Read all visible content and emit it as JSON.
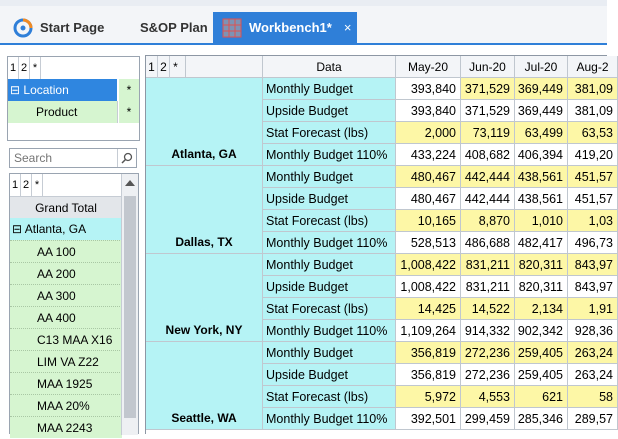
{
  "tabs": [
    {
      "label": "Start Page",
      "icon": "start-page-icon",
      "active": false
    },
    {
      "label": "S&OP Plan",
      "icon": "",
      "active": false
    },
    {
      "label": "Workbench1*",
      "icon": "workbench-grid-icon",
      "active": true,
      "close": "×"
    }
  ],
  "levels": [
    "1",
    "2",
    "*"
  ],
  "dimensions": {
    "rows": [
      {
        "expander": "⊟",
        "label": "Location",
        "star": "*"
      },
      {
        "expander": "",
        "label": "Product",
        "star": "*"
      }
    ]
  },
  "search": {
    "placeholder": "Search"
  },
  "tree": {
    "grand_total": "Grand Total",
    "group": {
      "expander": "⊟",
      "label": "Atlanta, GA"
    },
    "items": [
      "AA 100",
      "AA 200",
      "AA 300",
      "AA 400",
      "C13 MAA X16",
      "LIM VA Z22",
      "MAA 1925",
      "MAA 20%",
      "MAA 2243"
    ]
  },
  "grid": {
    "data_header": "Data",
    "months": [
      "May-20",
      "Jun-20",
      "Jul-20",
      "Aug-2"
    ],
    "locations": [
      {
        "name": "Atlanta, GA",
        "rows": [
          {
            "label": "Monthly Budget",
            "values": [
              "393,840",
              "371,529",
              "369,449",
              "381,09"
            ],
            "editable": [
              false,
              true,
              true,
              true
            ]
          },
          {
            "label": "Upside Budget",
            "values": [
              "393,840",
              "371,529",
              "369,449",
              "381,09"
            ],
            "editable": [
              false,
              false,
              false,
              false
            ]
          },
          {
            "label": "Stat Forecast (lbs)",
            "values": [
              "2,000",
              "73,119",
              "63,499",
              "63,53"
            ],
            "editable": [
              true,
              true,
              true,
              true
            ]
          },
          {
            "label": "Monthly Budget 110%",
            "values": [
              "433,224",
              "408,682",
              "406,394",
              "419,20"
            ],
            "editable": [
              false,
              false,
              false,
              false
            ]
          }
        ]
      },
      {
        "name": "Dallas, TX",
        "rows": [
          {
            "label": "Monthly Budget",
            "values": [
              "480,467",
              "442,444",
              "438,561",
              "451,57"
            ],
            "editable": [
              true,
              true,
              true,
              true
            ]
          },
          {
            "label": "Upside Budget",
            "values": [
              "480,467",
              "442,444",
              "438,561",
              "451,57"
            ],
            "editable": [
              false,
              false,
              false,
              false
            ]
          },
          {
            "label": "Stat Forecast (lbs)",
            "values": [
              "10,165",
              "8,870",
              "1,010",
              "1,03"
            ],
            "editable": [
              true,
              true,
              true,
              true
            ]
          },
          {
            "label": "Monthly Budget 110%",
            "values": [
              "528,513",
              "486,688",
              "482,417",
              "496,73"
            ],
            "editable": [
              false,
              false,
              false,
              false
            ]
          }
        ]
      },
      {
        "name": "New York, NY",
        "rows": [
          {
            "label": "Monthly Budget",
            "values": [
              "1,008,422",
              "831,211",
              "820,311",
              "843,97"
            ],
            "editable": [
              true,
              true,
              true,
              true
            ]
          },
          {
            "label": "Upside Budget",
            "values": [
              "1,008,422",
              "831,211",
              "820,311",
              "843,97"
            ],
            "editable": [
              false,
              false,
              false,
              false
            ]
          },
          {
            "label": "Stat Forecast (lbs)",
            "values": [
              "14,425",
              "14,522",
              "2,134",
              "1,91"
            ],
            "editable": [
              true,
              true,
              true,
              true
            ]
          },
          {
            "label": "Monthly Budget 110%",
            "values": [
              "1,109,264",
              "914,332",
              "902,342",
              "928,36"
            ],
            "editable": [
              false,
              false,
              false,
              false
            ]
          }
        ]
      },
      {
        "name": "Seattle, WA",
        "rows": [
          {
            "label": "Monthly Budget",
            "values": [
              "356,819",
              "272,236",
              "259,405",
              "263,24"
            ],
            "editable": [
              true,
              true,
              true,
              true
            ]
          },
          {
            "label": "Upside Budget",
            "values": [
              "356,819",
              "272,236",
              "259,405",
              "263,24"
            ],
            "editable": [
              false,
              false,
              false,
              false
            ]
          },
          {
            "label": "Stat Forecast (lbs)",
            "values": [
              "5,972",
              "4,553",
              "621",
              "58"
            ],
            "editable": [
              true,
              true,
              true,
              true
            ]
          },
          {
            "label": "Monthly Budget 110%",
            "values": [
              "392,501",
              "299,459",
              "285,346",
              "289,57"
            ],
            "editable": [
              false,
              false,
              false,
              false
            ]
          }
        ]
      }
    ]
  }
}
